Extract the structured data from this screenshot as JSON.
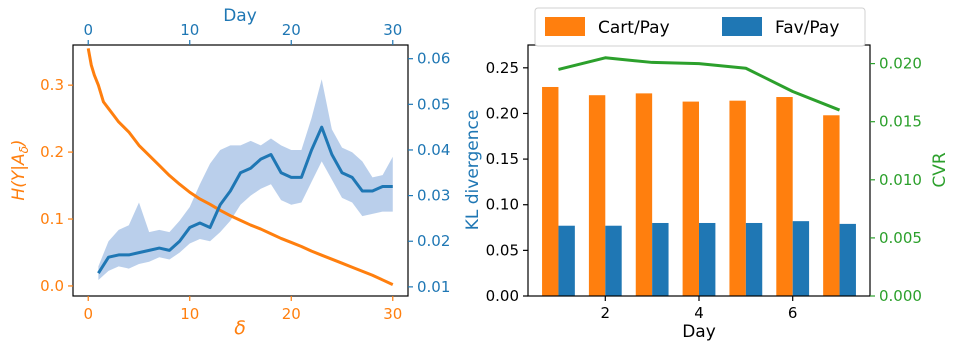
{
  "colors": {
    "orange": "#ff7f0e",
    "blue": "#1f77b4",
    "green": "#2ca02c",
    "band": "#aec7e8",
    "axis": "#000000"
  },
  "chart_data": [
    {
      "type": "line",
      "xlabel": "δ",
      "ylabel": "H(Y|A_δ)",
      "top_xlabel": "Day",
      "xlim": [
        -1.5,
        31.5
      ],
      "ylim": [
        -0.015,
        0.36
      ],
      "x_ticks": [
        0,
        10,
        20,
        30
      ],
      "y_ticks": [
        0.0,
        0.1,
        0.2,
        0.3
      ],
      "top_xlim": [
        -1.5,
        31.5
      ],
      "top_x_ticks": [
        0,
        10,
        20,
        30
      ],
      "y2lim": [
        0.008,
        0.063
      ],
      "y2_ticks": [
        0.01,
        0.02,
        0.03,
        0.04,
        0.05,
        0.06
      ],
      "series": [
        {
          "axis": "left",
          "color": "orange",
          "x": [
            0,
            0.3,
            0.6,
            1,
            1.5,
            2,
            2.5,
            3,
            4,
            5,
            6,
            7,
            8,
            9,
            10,
            11,
            12,
            13,
            14,
            15,
            16,
            17,
            18,
            19,
            20,
            21,
            22,
            23,
            24,
            25,
            26,
            27,
            28,
            29,
            30
          ],
          "values": [
            0.355,
            0.33,
            0.315,
            0.3,
            0.275,
            0.265,
            0.255,
            0.245,
            0.23,
            0.21,
            0.195,
            0.18,
            0.165,
            0.152,
            0.14,
            0.13,
            0.122,
            0.113,
            0.105,
            0.098,
            0.091,
            0.085,
            0.078,
            0.071,
            0.065,
            0.059,
            0.052,
            0.046,
            0.04,
            0.034,
            0.028,
            0.022,
            0.016,
            0.009,
            0.002
          ]
        },
        {
          "axis": "right",
          "color": "blue",
          "x": [
            1,
            2,
            3,
            4,
            5,
            6,
            7,
            8,
            9,
            10,
            11,
            12,
            13,
            14,
            15,
            16,
            17,
            18,
            19,
            20,
            21,
            22,
            23,
            24,
            25,
            26,
            27,
            28,
            29,
            30
          ],
          "values": [
            0.013,
            0.0165,
            0.017,
            0.017,
            0.0175,
            0.018,
            0.0185,
            0.018,
            0.02,
            0.023,
            0.024,
            0.023,
            0.028,
            0.031,
            0.035,
            0.036,
            0.038,
            0.039,
            0.035,
            0.034,
            0.034,
            0.04,
            0.045,
            0.039,
            0.035,
            0.034,
            0.031,
            0.031,
            0.032,
            0.032
          ],
          "band_low": [
            0.0115,
            0.0135,
            0.0145,
            0.014,
            0.015,
            0.0155,
            0.0165,
            0.016,
            0.0175,
            0.0195,
            0.0205,
            0.02,
            0.022,
            0.0245,
            0.028,
            0.03,
            0.0315,
            0.0325,
            0.029,
            0.028,
            0.0285,
            0.033,
            0.0375,
            0.0335,
            0.0295,
            0.0285,
            0.0255,
            0.026,
            0.0265,
            0.0265
          ],
          "band_high": [
            0.0145,
            0.02,
            0.0225,
            0.0235,
            0.0285,
            0.022,
            0.0225,
            0.022,
            0.0245,
            0.0275,
            0.0325,
            0.037,
            0.04,
            0.041,
            0.041,
            0.042,
            0.041,
            0.0425,
            0.041,
            0.04,
            0.04,
            0.047,
            0.0555,
            0.0445,
            0.0405,
            0.0395,
            0.0375,
            0.034,
            0.0345,
            0.0385
          ]
        }
      ]
    },
    {
      "type": "bar",
      "xlabel": "Day",
      "ylabel": "KL divergence",
      "y2label": "CVR",
      "xlim": [
        0.35,
        7.65
      ],
      "ylim": [
        0,
        0.275
      ],
      "x_ticks": [
        2,
        4,
        6
      ],
      "y_ticks": [
        0.0,
        0.05,
        0.1,
        0.15,
        0.2,
        0.25
      ],
      "y2lim": [
        0,
        0.0216
      ],
      "y2_ticks": [
        0.0,
        0.005,
        0.01,
        0.015,
        0.02
      ],
      "categories": [
        1,
        2,
        3,
        4,
        5,
        6,
        7
      ],
      "legend_position": "top",
      "series": [
        {
          "name": "Cart/Pay",
          "color": "orange",
          "values": [
            0.229,
            0.22,
            0.222,
            0.213,
            0.214,
            0.218,
            0.198
          ]
        },
        {
          "name": "Fav/Pay",
          "color": "blue",
          "values": [
            0.077,
            0.077,
            0.08,
            0.08,
            0.08,
            0.082,
            0.079
          ]
        },
        {
          "name": "",
          "axis": "right",
          "type": "line",
          "color": "green",
          "values": [
            0.0195,
            0.0205,
            0.0201,
            0.02,
            0.0196,
            0.0176,
            0.016
          ]
        }
      ]
    }
  ]
}
